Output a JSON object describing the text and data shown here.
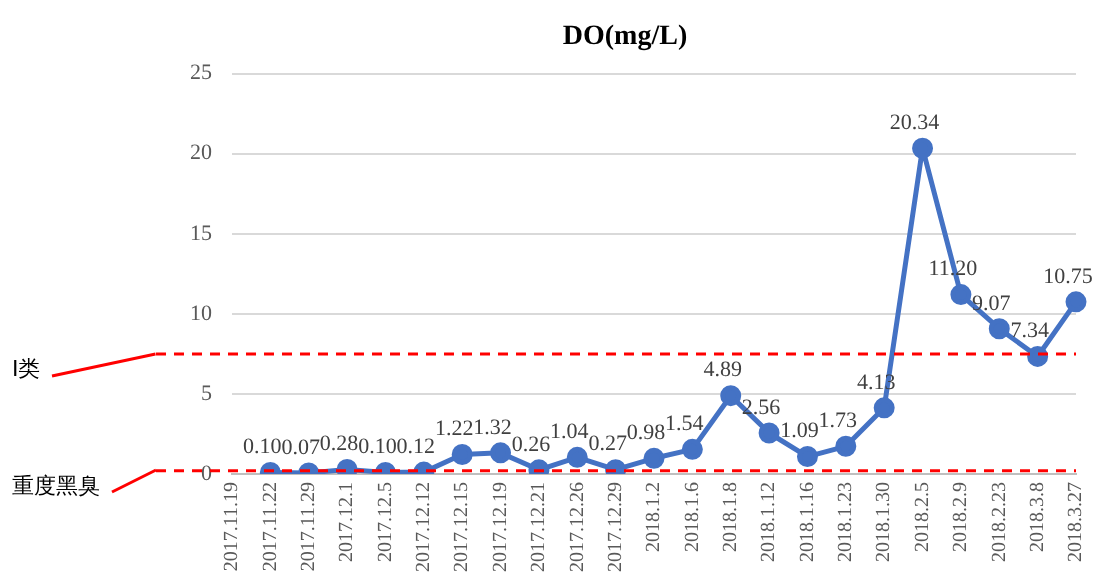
{
  "chart_data": {
    "type": "line",
    "title": "DO(mg/L)",
    "categories": [
      "2017.11.19",
      "2017.11.22",
      "2017.11.29",
      "2017.12.1",
      "2017.12.5",
      "2017.12.12",
      "2017.12.15",
      "2017.12.19",
      "2017.12.21",
      "2017.12.26",
      "2017.12.29",
      "2018.1.2",
      "2018.1.6",
      "2018.1.8",
      "2018.1.12",
      "2018.1.16",
      "2018.1.23",
      "2018.1.30",
      "2018.2.5",
      "2018.2.9",
      "2018.2.23",
      "2018.3.8",
      "2018.3.27"
    ],
    "series": [
      {
        "color": "#4472c4",
        "values": [
          null,
          0.1,
          0.07,
          0.28,
          0.1,
          0.12,
          1.22,
          1.32,
          0.26,
          1.04,
          0.27,
          0.98,
          1.54,
          4.89,
          2.56,
          1.09,
          1.73,
          4.13,
          20.34,
          11.2,
          9.07,
          7.34,
          10.75
        ],
        "value_labels": [
          null,
          "0.10",
          "0.07",
          "0.28",
          "0.10",
          "0.12",
          "1.22",
          "1.32",
          "0.26",
          "1.04",
          "0.27",
          "0.98",
          "1.54",
          "4.89",
          "2.56",
          "1.09",
          "1.73",
          "4.13",
          "20.34",
          "11.20",
          "9.07",
          "7.34",
          "10.75"
        ]
      }
    ],
    "ylim": [
      0,
      25
    ],
    "yticks": [
      0,
      5,
      10,
      15,
      20,
      25
    ],
    "grid": "y",
    "legend": false,
    "marker": "circle",
    "line_style": "solid",
    "ref_lines": [
      {
        "axis": "y",
        "value": 7.5,
        "label": "I类",
        "color": "#ff0000",
        "line_style": "dashed"
      },
      {
        "axis": "y",
        "value": 0.2,
        "label": "重度黑臭",
        "color": "#ff0000",
        "line_style": "dashed"
      }
    ]
  }
}
